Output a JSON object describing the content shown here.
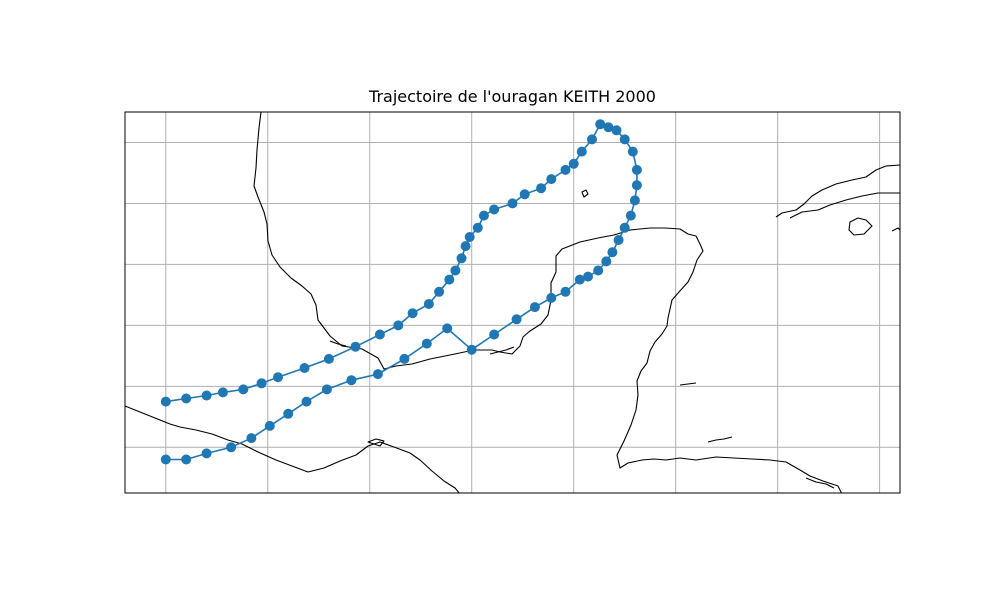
{
  "title": "Trajectoire de l'ouragan KEITH 2000",
  "colors": {
    "track": "#1f77b4",
    "coastline": "#000000",
    "grid": "#b0b0b0",
    "frame": "#000000",
    "background": "#ffffff"
  },
  "map": {
    "projection": "PlateCarree",
    "lon_range": [
      -105,
      -67
    ],
    "lat_range": [
      12.5,
      25
    ],
    "gridlines": true,
    "grid_lons": [
      -103,
      -98,
      -93,
      -88,
      -83,
      -78,
      -73,
      -68
    ],
    "grid_lats": [
      14,
      16,
      18,
      20,
      22,
      24
    ],
    "coastlines": true
  },
  "chart_data": {
    "type": "scatter",
    "title": "Trajectoire de l'ouragan KEITH 2000",
    "xlabel": "",
    "ylabel": "",
    "series": [
      {
        "connect": true,
        "marker": "circle",
        "lon": [
          -103,
          -102,
          -101,
          -99.8,
          -98.8,
          -97.9,
          -97,
          -96.1,
          -95.1,
          -93.9,
          -92.6,
          -91.3,
          -90.2,
          -89.2,
          -88,
          -86.9,
          -85.8,
          -84.9,
          -84.1,
          -83.4,
          -82.7,
          -82.3,
          -81.8,
          -81.4,
          -81.1,
          -80.8,
          -80.5,
          -80.2,
          -80,
          -79.9,
          -79.9,
          -80.1,
          -80.5,
          -80.9,
          -81.3,
          -81.7,
          -82.1,
          -82.6,
          -83,
          -83.4,
          -84.1,
          -84.6,
          -85.4,
          -86,
          -86.9,
          -87.4,
          -87.7,
          -88.1,
          -88.3,
          -88.5,
          -88.8,
          -89.1,
          -89.6,
          -90.1,
          -90.9,
          -91.6,
          -92.5,
          -93.7,
          -95,
          -96.2,
          -97.5,
          -98.3,
          -99.2,
          -100.2,
          -101,
          -102,
          -103
        ],
        "lat": [
          13.6,
          13.6,
          13.8,
          14,
          14.3,
          14.7,
          15.1,
          15.5,
          15.9,
          16.2,
          16.4,
          16.9,
          17.4,
          17.9,
          17.2,
          17.7,
          18.2,
          18.6,
          18.9,
          19.1,
          19.5,
          19.6,
          19.8,
          20.1,
          20.4,
          20.8,
          21.2,
          21.6,
          22.1,
          22.6,
          23.1,
          23.7,
          24.1,
          24.4,
          24.5,
          24.6,
          24.1,
          23.7,
          23.3,
          23.1,
          22.8,
          22.5,
          22.3,
          22,
          21.8,
          21.6,
          21.2,
          20.9,
          20.6,
          20.2,
          19.8,
          19.5,
          19.1,
          18.7,
          18.4,
          18,
          17.7,
          17.3,
          16.9,
          16.6,
          16.3,
          16.1,
          15.9,
          15.8,
          15.7,
          15.6,
          15.5
        ]
      }
    ]
  }
}
